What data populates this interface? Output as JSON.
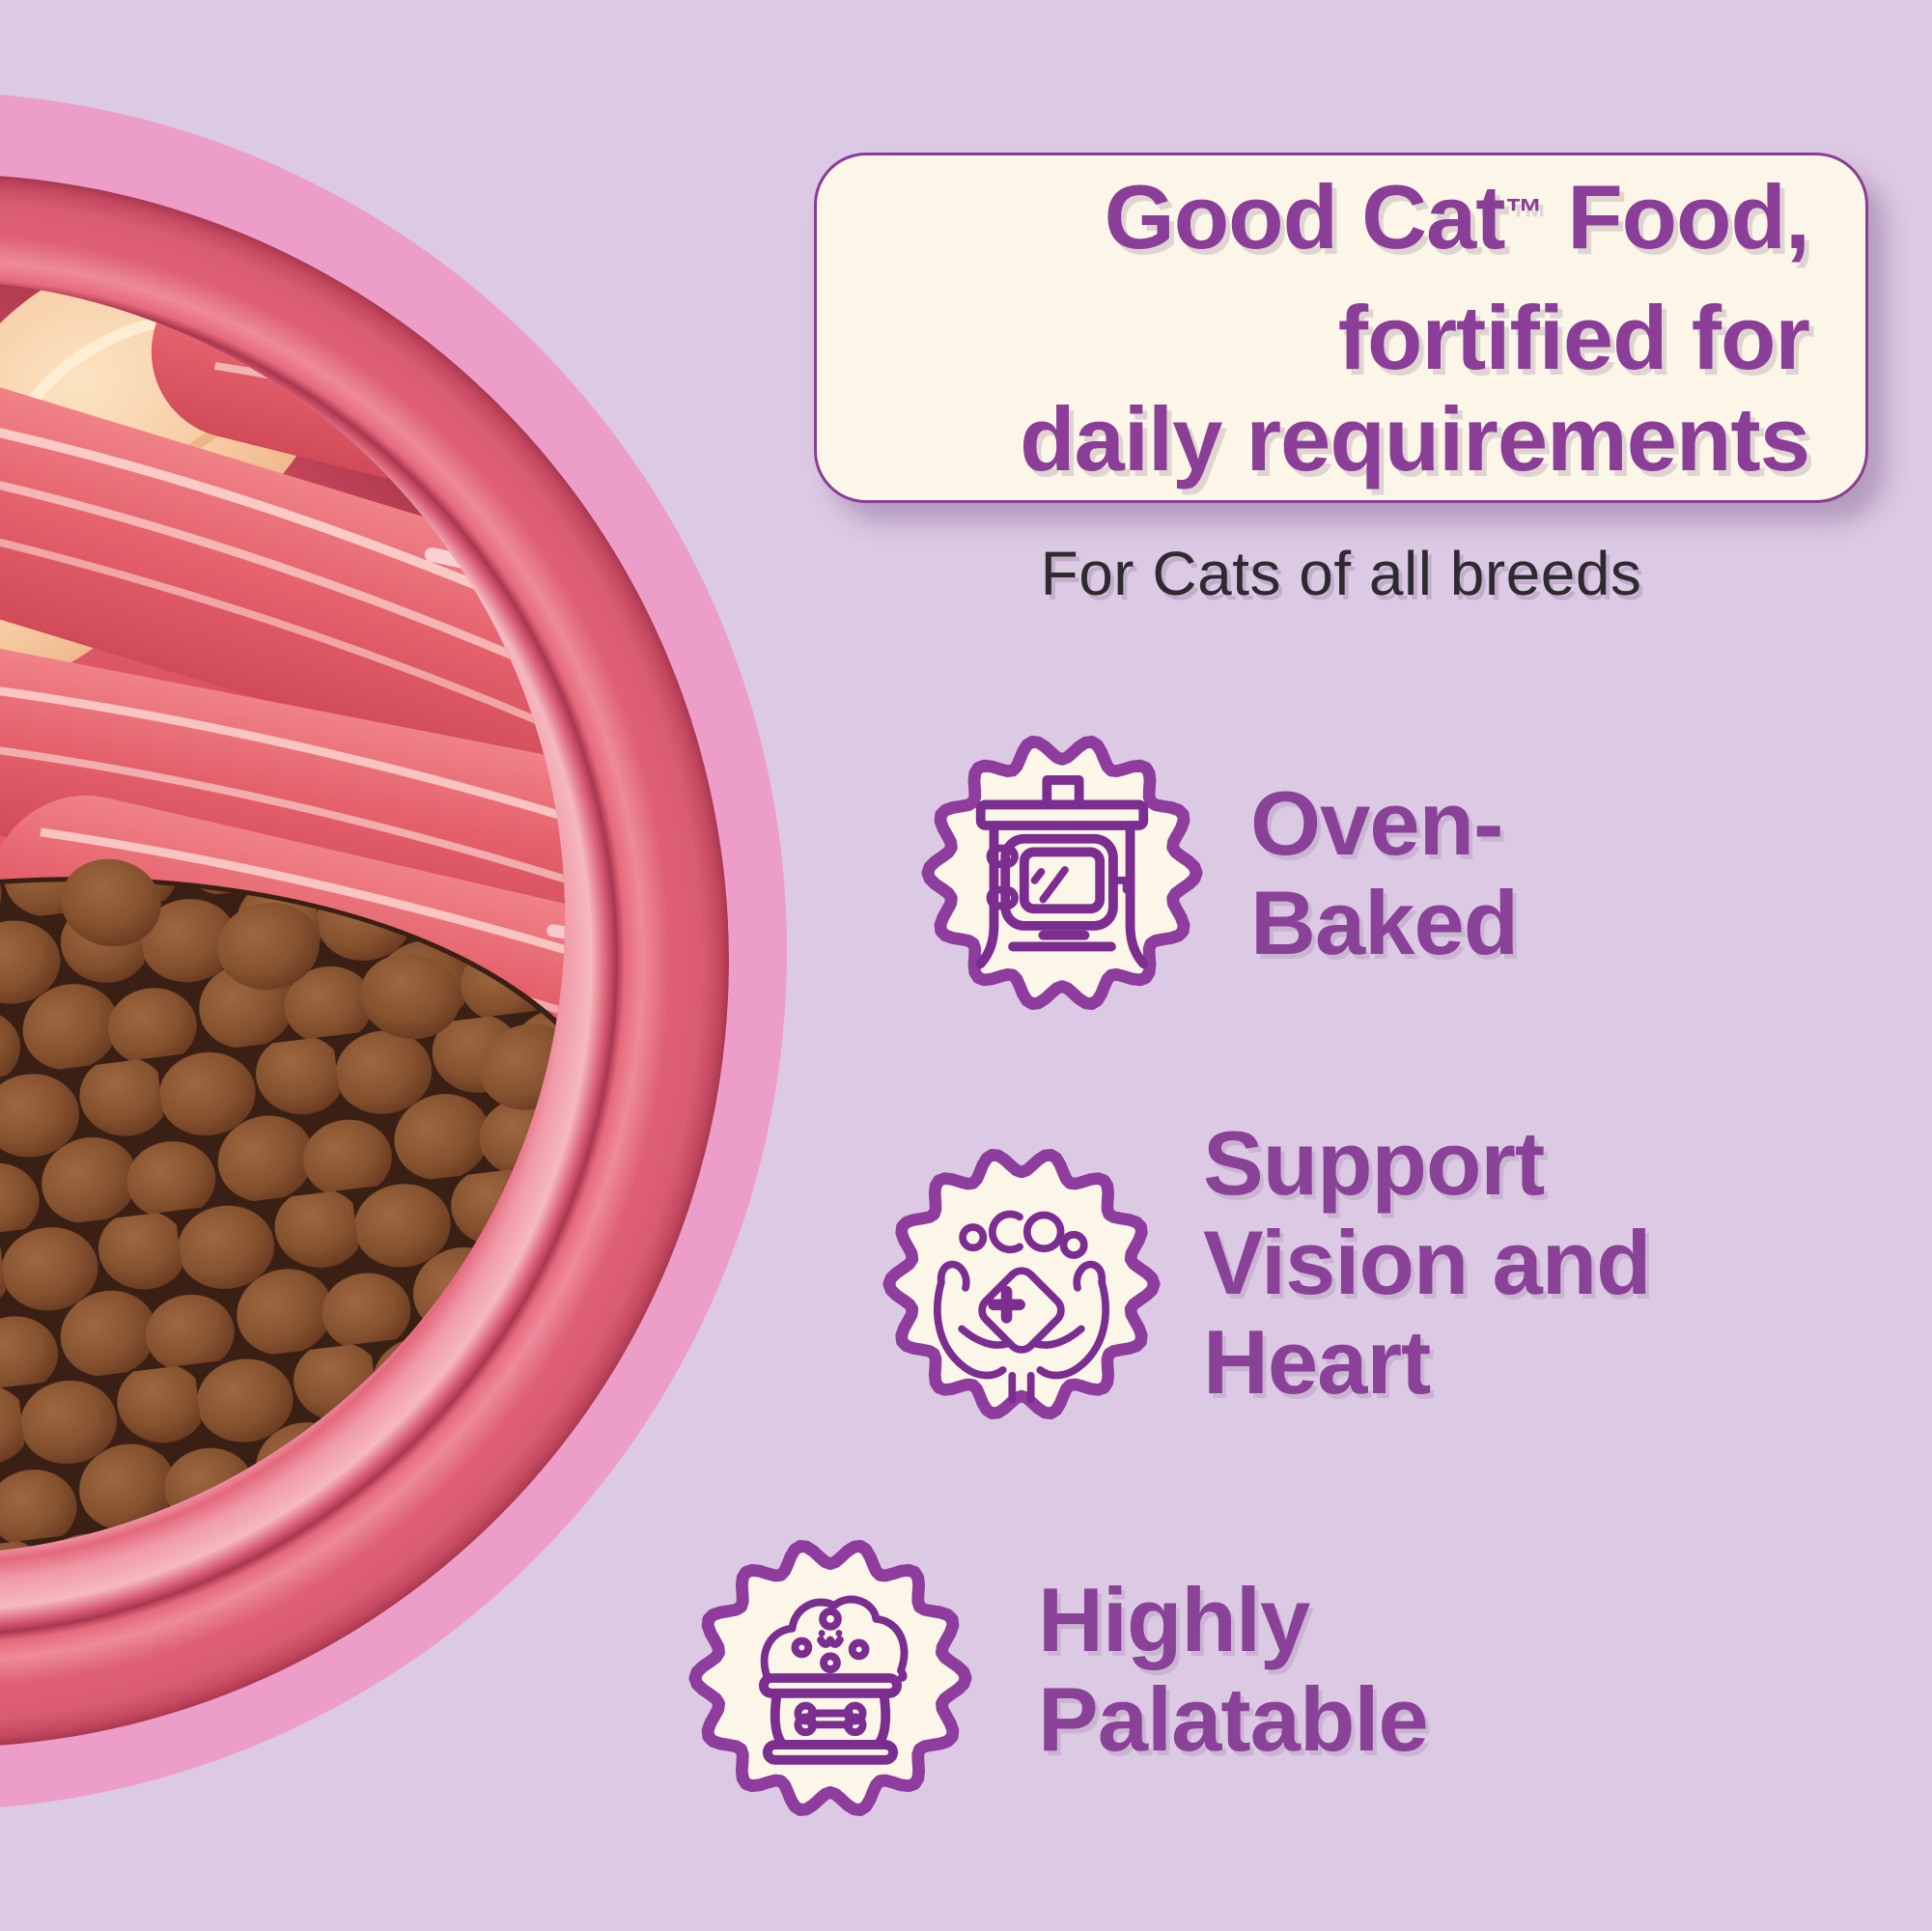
{
  "banner": {
    "card": {
      "title_line1_product": "Good Cat",
      "title_line1_tm": "™",
      "title_line1_rest": " Food,",
      "title_line2": "fortified for",
      "title_line3": "daily requirements"
    },
    "subtitle": "For Cats of all breeds",
    "features": [
      {
        "icon": "oven-icon",
        "badge_shape": "scalloped-seal",
        "line1": "Oven-",
        "line2": "Baked"
      },
      {
        "icon": "care-hands-icon",
        "badge_shape": "scalloped-seal",
        "line1": "Support",
        "line2": "Vision and",
        "line3": "Heart"
      },
      {
        "icon": "food-bowl-icon",
        "badge_shape": "scalloped-seal",
        "line1": "Highly",
        "line2": "Palatable"
      }
    ],
    "colors": {
      "background_lavender": "#DCC9E3",
      "pink_circle": "#EC9EC8",
      "card_cream": "#FBF6E7",
      "accent_purple": "#8B3E98",
      "badge_ring_purple": "#8E3C9E",
      "icon_purple": "#7B2D90",
      "subtitle_text": "#2E2A30",
      "bowl_red": "#D95C72",
      "kibble_brown": "#86522F"
    }
  }
}
